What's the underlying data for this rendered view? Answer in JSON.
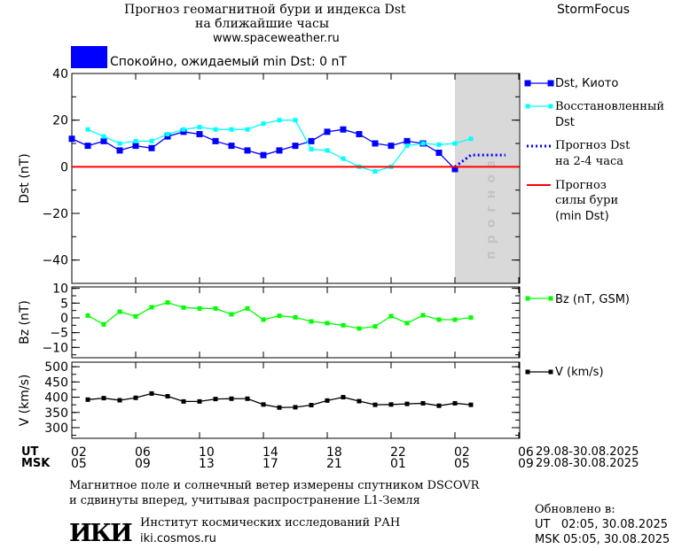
{
  "header": {
    "title_line1": "Прогноз геомагнитной бури и индекса Dst",
    "title_line2": "на ближайшие часы",
    "url": "www.spaceweather.ru",
    "brand": "StormFocus",
    "status_text": "Спокойно, ожидаемый min Dst: 0 nT",
    "status_color": "#0000ff"
  },
  "legend": {
    "dst_kyoto": "Dst, Киото",
    "dst_restored_1": "Восстановленный",
    "dst_restored_2": "Dst",
    "dst_forecast_1": "Прогноз Dst",
    "dst_forecast_2": "на 2-4 часа",
    "storm_forecast_1": "Прогноз",
    "storm_forecast_2": "силы бури",
    "storm_forecast_3": "(min Dst)",
    "bz": "Bz (nT, GSM)",
    "v": "V (km/s)"
  },
  "footer": {
    "note_line1": "Магнитное поле и солнечный ветер измерены спутником DSCOVR",
    "note_line2": "и сдвинуты вперед, учитывая распространение L1-Земля",
    "institute": "Институт космических исследований РАН",
    "institute_url": "iki.cosmos.ru",
    "logo_text": "ИКИ",
    "updated_label": "Обновлено в:",
    "updated_ut": "UT   02:05, 30.08.2025",
    "updated_msk": "MSK 05:05, 30.08.2025"
  },
  "chart_data": [
    {
      "type": "line",
      "ylabel": "Dst (nT)",
      "ylim": [
        -50,
        40
      ],
      "yticks": [
        "40",
        "20",
        "0",
        "−20",
        "−40"
      ],
      "forecast_region_label": "прогноз",
      "forecast_region": [
        "30.08 02:00",
        "30.08 06:00"
      ],
      "series": [
        {
          "name": "Dst, Киото",
          "color": "#0000ff",
          "points": [
            [
              "29.08 02:00",
              12
            ],
            [
              "29.08 03:00",
              9
            ],
            [
              "29.08 04:00",
              11
            ],
            [
              "29.08 05:00",
              7
            ],
            [
              "29.08 06:00",
              9
            ],
            [
              "29.08 07:00",
              8
            ],
            [
              "29.08 08:00",
              13
            ],
            [
              "29.08 09:00",
              15
            ],
            [
              "29.08 10:00",
              14
            ],
            [
              "29.08 11:00",
              11
            ],
            [
              "29.08 12:00",
              9
            ],
            [
              "29.08 13:00",
              7
            ],
            [
              "29.08 14:00",
              5
            ],
            [
              "29.08 15:00",
              7
            ],
            [
              "29.08 16:00",
              9
            ],
            [
              "29.08 17:00",
              11
            ],
            [
              "29.08 18:00",
              15
            ],
            [
              "29.08 19:00",
              16
            ],
            [
              "29.08 20:00",
              14
            ],
            [
              "29.08 21:00",
              10
            ],
            [
              "29.08 22:00",
              9
            ],
            [
              "29.08 23:00",
              11
            ],
            [
              "30.08 00:00",
              10
            ],
            [
              "30.08 01:00",
              6
            ],
            [
              "30.08 02:00",
              -1
            ]
          ]
        },
        {
          "name": "Восстановленный Dst",
          "color": "#00ffff",
          "points": [
            [
              "29.08 03:00",
              16
            ],
            [
              "29.08 04:00",
              13
            ],
            [
              "29.08 05:00",
              10
            ],
            [
              "29.08 06:00",
              11
            ],
            [
              "29.08 07:00",
              11
            ],
            [
              "29.08 08:00",
              14
            ],
            [
              "29.08 09:00",
              16
            ],
            [
              "29.08 10:00",
              17
            ],
            [
              "29.08 11:00",
              16
            ],
            [
              "29.08 12:00",
              16
            ],
            [
              "29.08 13:00",
              16
            ],
            [
              "29.08 14:00",
              18.5
            ],
            [
              "29.08 15:00",
              20
            ],
            [
              "29.08 16:00",
              20
            ],
            [
              "29.08 17:00",
              7.5
            ],
            [
              "29.08 18:00",
              7
            ],
            [
              "29.08 19:00",
              3.5
            ],
            [
              "29.08 20:00",
              0
            ],
            [
              "29.08 21:00",
              -2
            ],
            [
              "29.08 22:00",
              0
            ],
            [
              "29.08 23:00",
              9
            ],
            [
              "30.08 00:00",
              10
            ],
            [
              "30.08 01:00",
              9.5
            ],
            [
              "30.08 02:00",
              10
            ],
            [
              "30.08 03:00",
              12
            ]
          ]
        },
        {
          "name": "Прогноз Dst на 2-4 часа",
          "color": "#0000ff",
          "style": "dotted",
          "points": [
            [
              "30.08 02:00",
              0
            ],
            [
              "30.08 03:00",
              5
            ],
            [
              "30.08 05:10",
              5
            ]
          ]
        },
        {
          "name": "Прогноз силы бури (min Dst)",
          "color": "#ff0000",
          "points": [
            [
              "29.08 02:00",
              0
            ],
            [
              "30.08 06:00",
              0
            ]
          ]
        }
      ]
    },
    {
      "type": "line",
      "ylabel": "Bz (nT)",
      "ylim": [
        -13.5,
        10.5
      ],
      "yticks": [
        "10",
        "5",
        "0",
        "−5",
        "−10"
      ],
      "series": [
        {
          "name": "Bz (nT, GSM)",
          "color": "#00ff00",
          "points": [
            [
              "29.08 03:00",
              0.8
            ],
            [
              "29.08 04:00",
              -2.2
            ],
            [
              "29.08 05:00",
              2.1
            ],
            [
              "29.08 06:00",
              0.5
            ],
            [
              "29.08 07:00",
              3.6
            ],
            [
              "29.08 08:00",
              5.2
            ],
            [
              "29.08 09:00",
              3.5
            ],
            [
              "29.08 10:00",
              3.2
            ],
            [
              "29.08 11:00",
              3.2
            ],
            [
              "29.08 12:00",
              1.2
            ],
            [
              "29.08 13:00",
              3.2
            ],
            [
              "29.08 14:00",
              -0.6
            ],
            [
              "29.08 15:00",
              0.7
            ],
            [
              "29.08 16:00",
              0.2
            ],
            [
              "29.08 17:00",
              -1.2
            ],
            [
              "29.08 18:00",
              -1.8
            ],
            [
              "29.08 19:00",
              -2.5
            ],
            [
              "29.08 20:00",
              -3.6
            ],
            [
              "29.08 21:00",
              -2.9
            ],
            [
              "29.08 22:00",
              0.6
            ],
            [
              "29.08 23:00",
              -1.8
            ],
            [
              "30.08 00:00",
              0.9
            ],
            [
              "30.08 01:00",
              -0.6
            ],
            [
              "30.08 02:00",
              -0.6
            ],
            [
              "30.08 03:00",
              0.1
            ]
          ]
        }
      ]
    },
    {
      "type": "line",
      "ylabel": "V (km/s)",
      "ylim": [
        265,
        515
      ],
      "yticks": [
        "500",
        "450",
        "400",
        "350",
        "300"
      ],
      "series": [
        {
          "name": "V (km/s)",
          "color": "#000000",
          "points": [
            [
              "29.08 03:00",
              392
            ],
            [
              "29.08 04:00",
              397
            ],
            [
              "29.08 05:00",
              390
            ],
            [
              "29.08 06:00",
              398
            ],
            [
              "29.08 07:00",
              412
            ],
            [
              "29.08 08:00",
              403
            ],
            [
              "29.08 09:00",
              386
            ],
            [
              "29.08 10:00",
              386
            ],
            [
              "29.08 11:00",
              394
            ],
            [
              "29.08 12:00",
              395
            ],
            [
              "29.08 13:00",
              395
            ],
            [
              "29.08 14:00",
              376
            ],
            [
              "29.08 15:00",
              366
            ],
            [
              "29.08 16:00",
              367
            ],
            [
              "29.08 17:00",
              374
            ],
            [
              "29.08 18:00",
              389
            ],
            [
              "29.08 19:00",
              400
            ],
            [
              "29.08 20:00",
              387
            ],
            [
              "29.08 21:00",
              375
            ],
            [
              "29.08 22:00",
              376
            ],
            [
              "29.08 23:00",
              378
            ],
            [
              "30.08 00:00",
              380
            ],
            [
              "30.08 01:00",
              372
            ],
            [
              "30.08 02:00",
              380
            ],
            [
              "30.08 03:00",
              375
            ]
          ]
        }
      ]
    }
  ],
  "xaxis": {
    "ut_label": "UT",
    "msk_label": "MSK",
    "ut_ticks": [
      "02",
      "06",
      "10",
      "14",
      "18",
      "22",
      "02",
      "06"
    ],
    "msk_ticks": [
      "05",
      "09",
      "13",
      "17",
      "21",
      "01",
      "05",
      "09"
    ],
    "ut_range": "29.08-30.08.2025",
    "msk_range": "29.08-30.08.2025"
  }
}
